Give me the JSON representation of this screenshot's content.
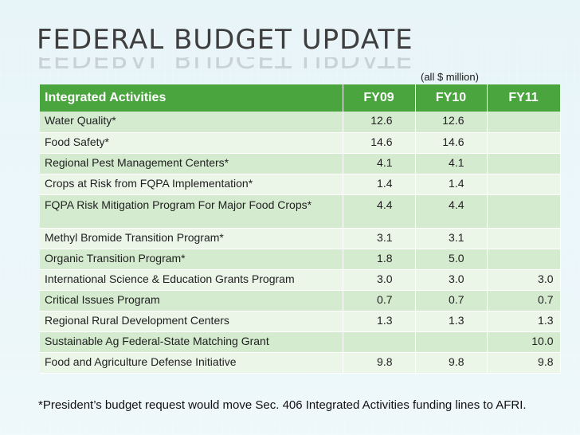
{
  "slide": {
    "title": "FEDERAL BUDGET UPDATE",
    "units_note": "(all $ million)",
    "footnote": "*President’s budget request would move Sec. 406 Integrated Activities funding lines to AFRI."
  },
  "table": {
    "headers": [
      "Integrated Activities",
      "FY09",
      "FY10",
      "FY11"
    ],
    "rows": [
      {
        "name": "Water Quality*",
        "fy09": "12.6",
        "fy10": "12.6",
        "fy11": ""
      },
      {
        "name": "Food Safety*",
        "fy09": "14.6",
        "fy10": "14.6",
        "fy11": ""
      },
      {
        "name": "Regional Pest Management Centers*",
        "fy09": "4.1",
        "fy10": "4.1",
        "fy11": ""
      },
      {
        "name": "Crops at Risk from FQPA Implementation*",
        "fy09": "1.4",
        "fy10": "1.4",
        "fy11": ""
      },
      {
        "name": "FQPA Risk Mitigation Program For Major Food Crops*",
        "fy09": "4.4",
        "fy10": "4.4",
        "fy11": ""
      },
      {
        "name": "Methyl Bromide Transition Program*",
        "fy09": "3.1",
        "fy10": "3.1",
        "fy11": ""
      },
      {
        "name": "Organic Transition Program*",
        "fy09": "1.8",
        "fy10": "5.0",
        "fy11": ""
      },
      {
        "name": "International Science & Education Grants Program",
        "fy09": "3.0",
        "fy10": "3.0",
        "fy11": "3.0"
      },
      {
        "name": "Critical Issues Program",
        "fy09": "0.7",
        "fy10": "0.7",
        "fy11": "0.7"
      },
      {
        "name": "Regional Rural Development Centers",
        "fy09": "1.3",
        "fy10": "1.3",
        "fy11": "1.3"
      },
      {
        "name": "Sustainable Ag Federal-State Matching Grant",
        "fy09": "",
        "fy10": "",
        "fy11": "10.0"
      },
      {
        "name": "Food and Agriculture Defense Initiative",
        "fy09": "9.8",
        "fy10": "9.8",
        "fy11": "9.8"
      }
    ]
  }
}
